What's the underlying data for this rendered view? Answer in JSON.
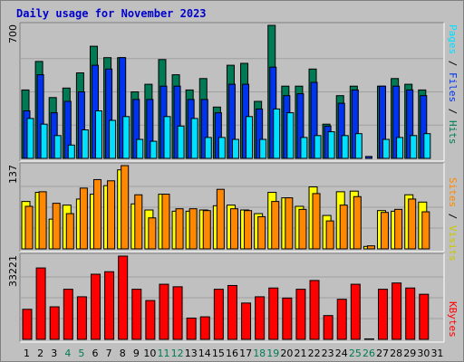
{
  "title": "Daily usage for November 2023",
  "colors": {
    "hits": "#007a55",
    "files": "#0033ee",
    "pages": "#00e0ff",
    "visits": "#ffff00",
    "sites": "#ff8800",
    "kbytes": "#ff0000",
    "weekend": "#007a55",
    "weekday": "#000000",
    "title": "#0000cc"
  },
  "legends": {
    "top": {
      "pages": "Pages",
      "files": "Files",
      "hits": "Hits",
      "sep": " / "
    },
    "middle": {
      "sites": "Sites",
      "visits": "Visits",
      "sep": " / "
    },
    "bottom": {
      "kbytes": "KBytes"
    }
  },
  "chart_data": [
    {
      "type": "bar",
      "panel": "hits-files-pages",
      "ylabel_top": "700",
      "ylim": [
        0,
        700
      ],
      "categories": [
        "1",
        "2",
        "3",
        "4",
        "5",
        "6",
        "7",
        "8",
        "9",
        "10",
        "11",
        "12",
        "13",
        "14",
        "15",
        "16",
        "17",
        "18",
        "19",
        "20",
        "21",
        "22",
        "23",
        "24",
        "25",
        "26",
        "27",
        "28",
        "29",
        "30",
        "31"
      ],
      "weekend_days": [
        "4",
        "5",
        "11",
        "12",
        "18",
        "19",
        "25",
        "26"
      ],
      "series": [
        {
          "name": "Hits",
          "values": [
            360,
            510,
            320,
            370,
            450,
            590,
            530,
            530,
            350,
            390,
            520,
            440,
            360,
            420,
            270,
            490,
            500,
            300,
            700,
            380,
            380,
            470,
            180,
            330,
            380,
            0,
            380,
            420,
            390,
            360,
            0
          ]
        },
        {
          "name": "Files",
          "values": [
            250,
            440,
            240,
            300,
            350,
            490,
            470,
            530,
            310,
            310,
            380,
            380,
            310,
            310,
            240,
            390,
            390,
            260,
            480,
            330,
            340,
            400,
            170,
            290,
            360,
            10,
            380,
            380,
            360,
            330,
            0
          ]
        },
        {
          "name": "Pages",
          "values": [
            210,
            180,
            120,
            70,
            150,
            250,
            200,
            220,
            100,
            90,
            220,
            170,
            210,
            110,
            110,
            100,
            220,
            100,
            260,
            240,
            110,
            120,
            140,
            120,
            130,
            0,
            100,
            110,
            120,
            130,
            0
          ]
        }
      ]
    },
    {
      "type": "bar",
      "panel": "visits-sites",
      "ylabel_top": "137",
      "ylim": [
        0,
        137
      ],
      "categories": [
        "1",
        "2",
        "3",
        "4",
        "5",
        "6",
        "7",
        "8",
        "9",
        "10",
        "11",
        "12",
        "13",
        "14",
        "15",
        "16",
        "17",
        "18",
        "19",
        "20",
        "21",
        "22",
        "23",
        "24",
        "25",
        "26",
        "27",
        "28",
        "29",
        "30",
        "31"
      ],
      "series": [
        {
          "name": "Visits",
          "values": [
            78,
            93,
            49,
            72,
            82,
            90,
            104,
            130,
            74,
            64,
            90,
            62,
            62,
            64,
            71,
            72,
            64,
            58,
            93,
            84,
            70,
            102,
            55,
            94,
            95,
            4,
            63,
            62,
            89,
            77,
            0
          ]
        },
        {
          "name": "Sites",
          "values": [
            70,
            94,
            75,
            58,
            100,
            114,
            112,
            137,
            89,
            51,
            90,
            66,
            66,
            63,
            98,
            66,
            63,
            53,
            78,
            84,
            65,
            91,
            46,
            72,
            86,
            5,
            60,
            65,
            82,
            61,
            0
          ]
        }
      ]
    },
    {
      "type": "bar",
      "panel": "kbytes",
      "ylabel_top": "33221",
      "ylim": [
        0,
        33221
      ],
      "categories": [
        "1",
        "2",
        "3",
        "4",
        "5",
        "6",
        "7",
        "8",
        "9",
        "10",
        "11",
        "12",
        "13",
        "14",
        "15",
        "16",
        "17",
        "18",
        "19",
        "20",
        "21",
        "22",
        "23",
        "24",
        "25",
        "26",
        "27",
        "28",
        "29",
        "30",
        "31"
      ],
      "series": [
        {
          "name": "KBytes",
          "values": [
            12000,
            28500,
            13000,
            20000,
            17000,
            26000,
            27000,
            33221,
            20000,
            15500,
            22000,
            21000,
            8500,
            9000,
            20000,
            21500,
            14500,
            17000,
            20500,
            16500,
            20000,
            23500,
            9500,
            16000,
            22000,
            200,
            20000,
            22500,
            20500,
            18000,
            0
          ]
        }
      ]
    }
  ]
}
